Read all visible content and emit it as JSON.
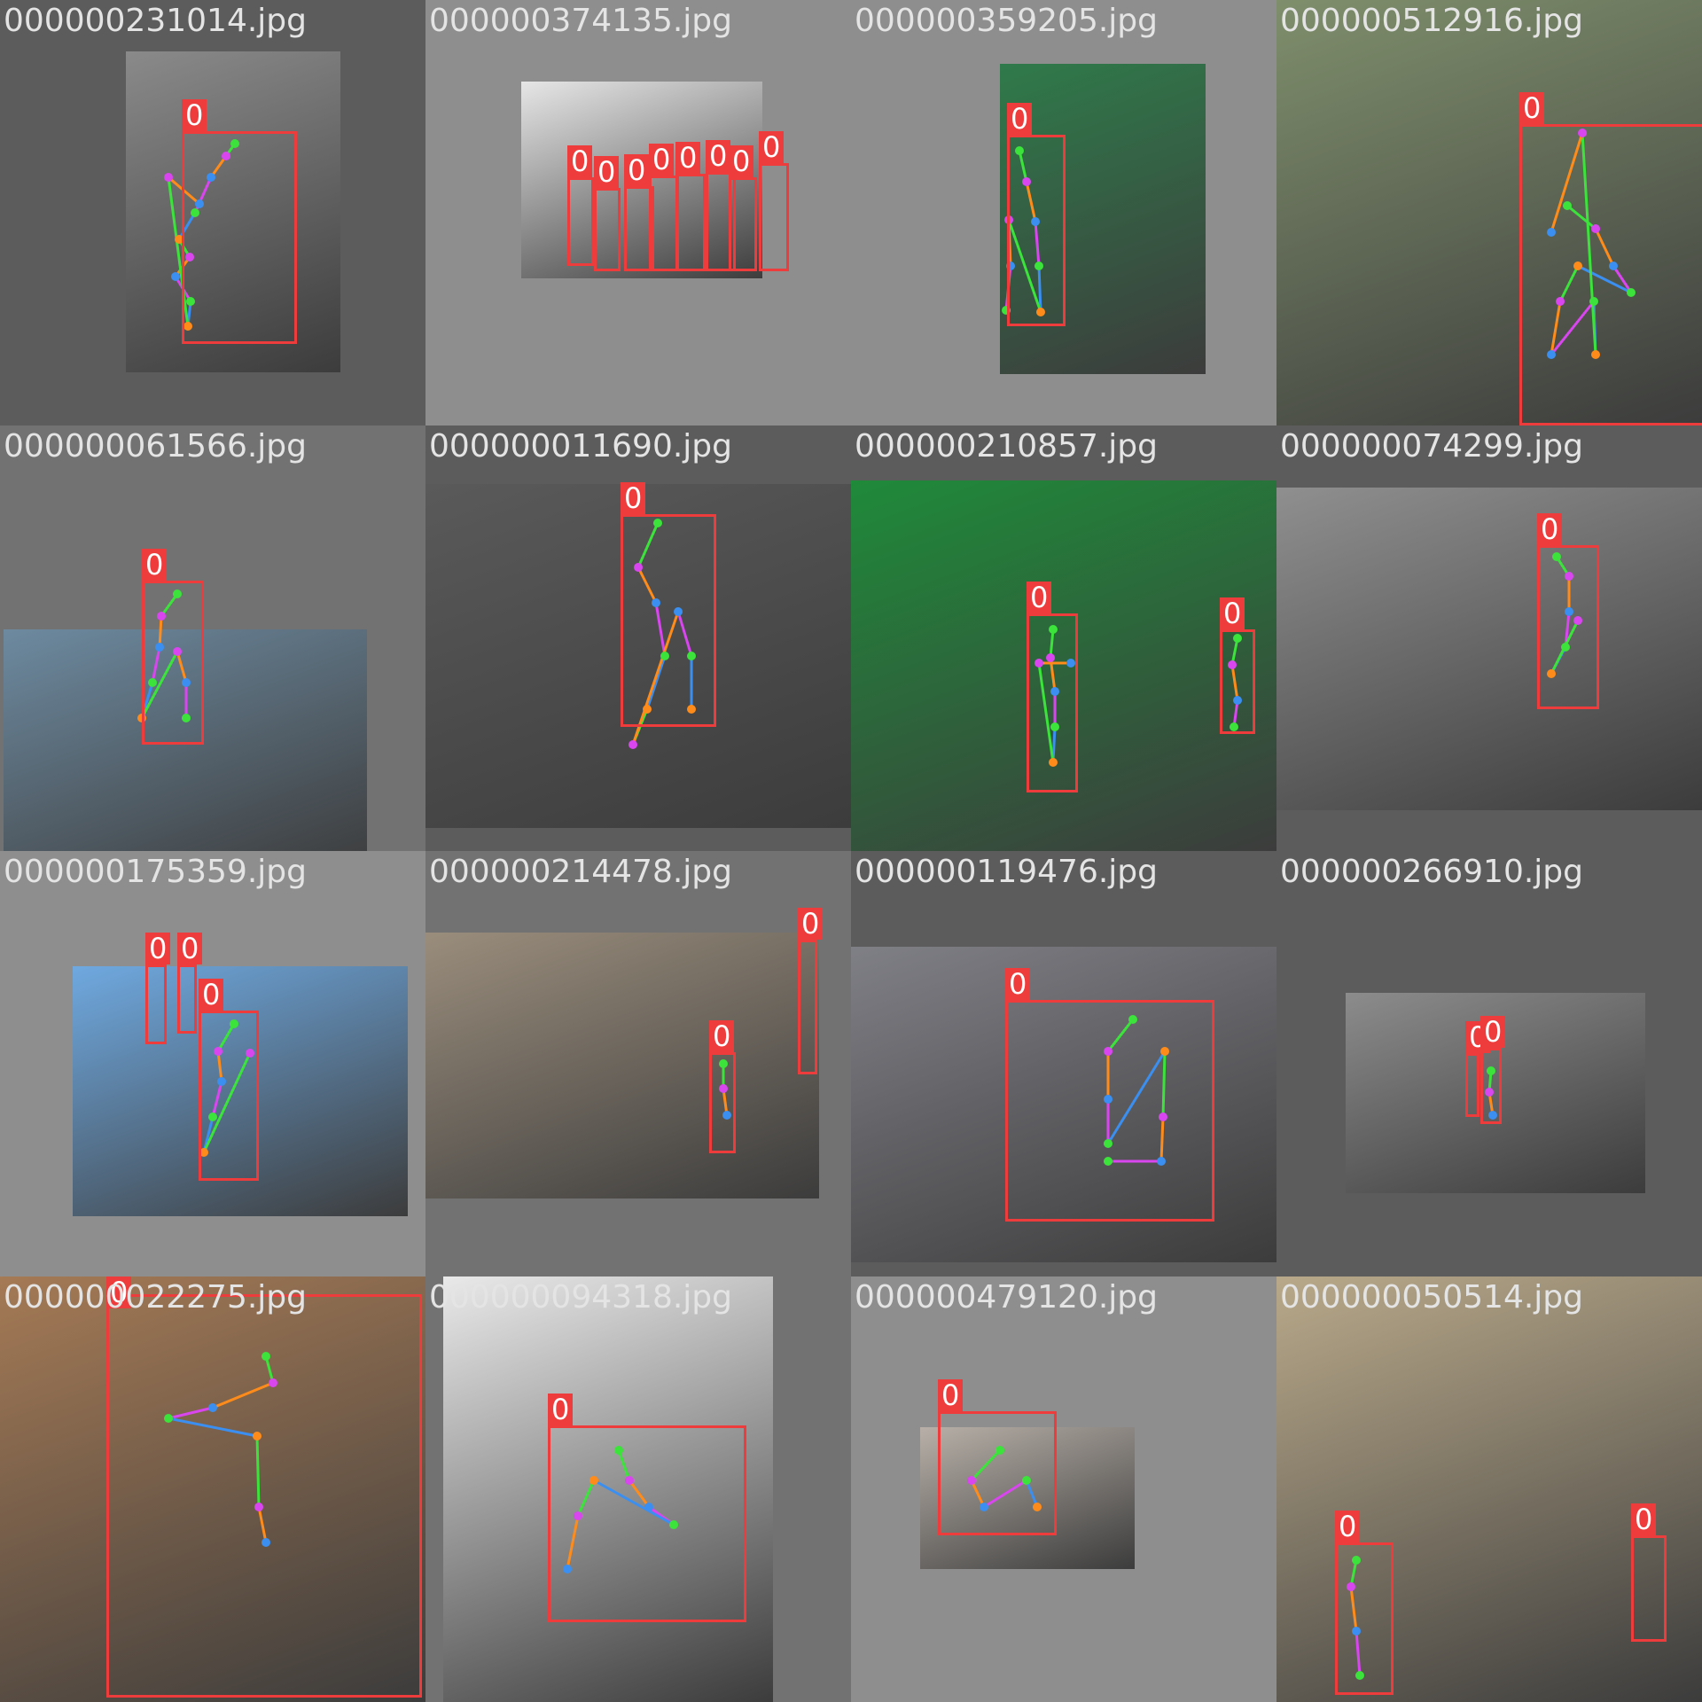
{
  "box_color": "#ee3b3b",
  "limb_colors": {
    "face": "#3be33b",
    "arms": "#ff8c1a",
    "torso": "#d946ef",
    "legs": "#3b8ff0"
  },
  "tiles": [
    {
      "filename": "000000231014.jpg",
      "bg": "#5c5c5c",
      "photo_color": "#8a8a8a",
      "labels": [
        "0"
      ]
    },
    {
      "filename": "000000374135.jpg",
      "bg": "#8e8e8e",
      "photo_color": "#e6e6e6",
      "labels": [
        "0",
        "0",
        "0",
        "0",
        "0",
        "0",
        "0",
        "0"
      ]
    },
    {
      "filename": "000000359205.jpg",
      "bg": "#8e8e8e",
      "photo_color": "#2f7a4a",
      "labels": [
        "0"
      ]
    },
    {
      "filename": "000000512916.jpg",
      "bg": "#7a7a7a",
      "photo_color": "#7f8f6c",
      "labels": [
        "0"
      ]
    },
    {
      "filename": "000000061566.jpg",
      "bg": "#727272",
      "photo_color": "#6d8aa0",
      "labels": [
        "0"
      ]
    },
    {
      "filename": "000000011690.jpg",
      "bg": "#5c5c5c",
      "photo_color": "#5a5a5a",
      "labels": [
        "0"
      ]
    },
    {
      "filename": "000000210857.jpg",
      "bg": "#5c5c5c",
      "photo_color": "#1f8a3a",
      "labels": [
        "0",
        "0"
      ]
    },
    {
      "filename": "000000074299.jpg",
      "bg": "#5c5c5c",
      "photo_color": "#8f8f8f",
      "labels": [
        "0"
      ]
    },
    {
      "filename": "000000175359.jpg",
      "bg": "#8e8e8e",
      "photo_color": "#6fa9e0",
      "labels": [
        "0",
        "0",
        "0"
      ]
    },
    {
      "filename": "000000214478.jpg",
      "bg": "#727272",
      "photo_color": "#9a8d7c",
      "labels": [
        "0",
        "0"
      ]
    },
    {
      "filename": "000000119476.jpg",
      "bg": "#5c5c5c",
      "photo_color": "#7f7f86",
      "labels": [
        "0"
      ]
    },
    {
      "filename": "000000266910.jpg",
      "bg": "#5c5c5c",
      "photo_color": "#8c8c8c",
      "labels": [
        "0",
        "0"
      ]
    },
    {
      "filename": "000000022275.jpg",
      "bg": "#727272",
      "photo_color": "#a57a55",
      "labels": [
        "0"
      ]
    },
    {
      "filename": "000000094318.jpg",
      "bg": "#727272",
      "photo_color": "#e9e9e9",
      "labels": [
        "0"
      ]
    },
    {
      "filename": "000000479120.jpg",
      "bg": "#8e8e8e",
      "photo_color": "#b8b0a8",
      "labels": [
        "0"
      ]
    },
    {
      "filename": "000000050514.jpg",
      "bg": "#8e8e8e",
      "photo_color": "#b9a98a",
      "labels": [
        "0",
        "0"
      ]
    }
  ]
}
